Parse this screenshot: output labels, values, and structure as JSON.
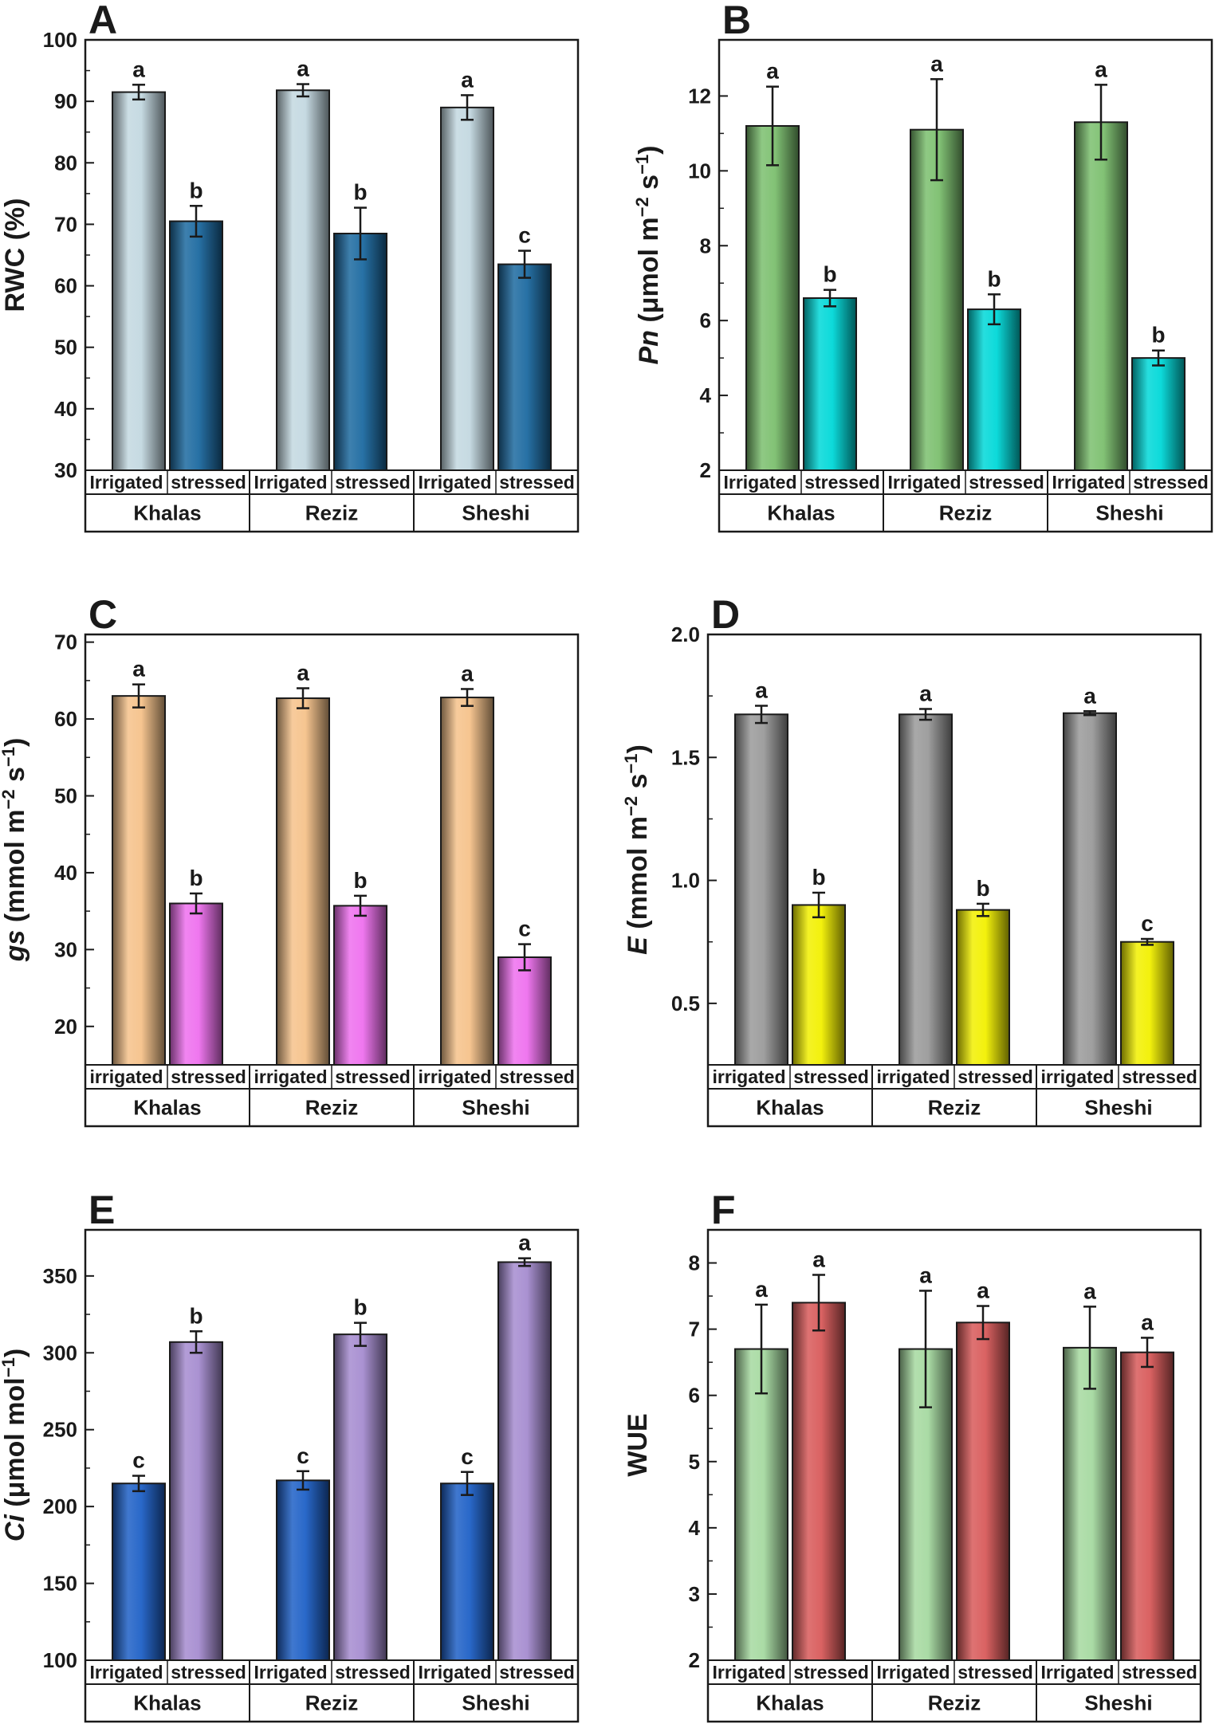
{
  "figure": {
    "panels": [
      {
        "id": "A",
        "ylabel_parts": [
          {
            "t": "RWC (%)"
          }
        ],
        "ylim": [
          30,
          100
        ],
        "ticks": [
          30,
          40,
          50,
          60,
          70,
          80,
          90,
          100
        ],
        "tick_format": "0",
        "colors": [
          "#c3d8e0",
          "#1c6aa0"
        ],
        "conditions": [
          "Irrigated",
          "stressed"
        ],
        "cultivars": [
          "Khalas",
          "Reziz",
          "Sheshi"
        ],
        "values": [
          [
            91.5,
            70.5
          ],
          [
            91.8,
            68.5
          ],
          [
            89,
            63.5
          ]
        ],
        "errors": [
          [
            1.2,
            2.5
          ],
          [
            1.0,
            4.2
          ],
          [
            2.0,
            2.2
          ]
        ],
        "letters": [
          [
            "a",
            "b"
          ],
          [
            "a",
            "b"
          ],
          [
            "a",
            "c"
          ]
        ]
      },
      {
        "id": "B",
        "ylabel_parts": [
          {
            "t": "Pn",
            "i": true
          },
          {
            "t": " (μmol m"
          },
          {
            "t": "−2",
            "sup": true
          },
          {
            "t": " s"
          },
          {
            "t": "−1",
            "sup": true
          },
          {
            "t": ")"
          }
        ],
        "ylim": [
          2,
          13.5
        ],
        "ticks": [
          2,
          4,
          6,
          8,
          10,
          12
        ],
        "tick_format": "0",
        "colors": [
          "#7bbf6e",
          "#00d8d8"
        ],
        "conditions": [
          "Irrigated",
          "stressed"
        ],
        "cultivars": [
          "Khalas",
          "Reziz",
          "Sheshi"
        ],
        "values": [
          [
            11.2,
            6.6
          ],
          [
            11.1,
            6.3
          ],
          [
            11.3,
            5.0
          ]
        ],
        "errors": [
          [
            1.05,
            0.22
          ],
          [
            1.35,
            0.4
          ],
          [
            1.0,
            0.2
          ]
        ],
        "letters": [
          [
            "a",
            "b"
          ],
          [
            "a",
            "b"
          ],
          [
            "a",
            "b"
          ]
        ]
      },
      {
        "id": "C",
        "ylabel_parts": [
          {
            "t": "gs",
            "i": true
          },
          {
            "t": " (mmol m"
          },
          {
            "t": "−2",
            "sup": true
          },
          {
            "t": " s"
          },
          {
            "t": "−1",
            "sup": true
          },
          {
            "t": ")"
          }
        ],
        "ylim": [
          15,
          71
        ],
        "ticks": [
          20,
          30,
          40,
          50,
          60,
          70
        ],
        "tick_format": "0",
        "colors": [
          "#f5c28a",
          "#ee70ee"
        ],
        "conditions": [
          "irrigated",
          "stressed"
        ],
        "cultivars": [
          "Khalas",
          "Reziz",
          "Sheshi"
        ],
        "values": [
          [
            63,
            36
          ],
          [
            62.7,
            35.7
          ],
          [
            62.8,
            29
          ]
        ],
        "errors": [
          [
            1.5,
            1.3
          ],
          [
            1.3,
            1.3
          ],
          [
            1.1,
            1.7
          ]
        ],
        "letters": [
          [
            "a",
            "b"
          ],
          [
            "a",
            "b"
          ],
          [
            "a",
            "c"
          ]
        ]
      },
      {
        "id": "D",
        "ylabel_parts": [
          {
            "t": "E",
            "i": true
          },
          {
            "t": " (mmol m"
          },
          {
            "t": "−2",
            "sup": true
          },
          {
            "t": " s"
          },
          {
            "t": "−1",
            "sup": true
          },
          {
            "t": ")"
          }
        ],
        "ylim": [
          0.25,
          2.0
        ],
        "ticks": [
          0.5,
          1.0,
          1.5,
          2.0
        ],
        "tick_format": "0.0",
        "colors": [
          "#9a9a9a",
          "#f2f000"
        ],
        "conditions": [
          "irrigated",
          "stressed"
        ],
        "cultivars": [
          "Khalas",
          "Reziz",
          "Sheshi"
        ],
        "values": [
          [
            1.675,
            0.9
          ],
          [
            1.675,
            0.88
          ],
          [
            1.68,
            0.75
          ]
        ],
        "errors": [
          [
            0.035,
            0.05
          ],
          [
            0.022,
            0.025
          ],
          [
            0.008,
            0.012
          ]
        ],
        "letters": [
          [
            "a",
            "b"
          ],
          [
            "a",
            "b"
          ],
          [
            "a",
            "c"
          ]
        ]
      },
      {
        "id": "E",
        "ylabel_parts": [
          {
            "t": "Ci",
            "i": true
          },
          {
            "t": " (μmol mol"
          },
          {
            "t": "−1",
            "sup": true
          },
          {
            "t": ")"
          }
        ],
        "ylim": [
          100,
          380
        ],
        "ticks": [
          100,
          150,
          200,
          250,
          300,
          350
        ],
        "tick_format": "0",
        "colors": [
          "#1e60c6",
          "#a58cd0"
        ],
        "conditions": [
          "Irrigated",
          "stressed"
        ],
        "cultivars": [
          "Khalas",
          "Reziz",
          "Sheshi"
        ],
        "values": [
          [
            215,
            307
          ],
          [
            217,
            312
          ],
          [
            215,
            359
          ]
        ],
        "errors": [
          [
            5,
            7
          ],
          [
            6,
            7.5
          ],
          [
            7.5,
            2.5
          ]
        ],
        "letters": [
          [
            "c",
            "b"
          ],
          [
            "c",
            "b"
          ],
          [
            "c",
            "a"
          ]
        ]
      },
      {
        "id": "F",
        "ylabel_parts": [
          {
            "t": "WUE"
          }
        ],
        "ylim": [
          2,
          8.5
        ],
        "ticks": [
          2,
          3,
          4,
          5,
          6,
          7,
          8
        ],
        "tick_format": "0",
        "colors": [
          "#a6d9a0",
          "#d85a5a"
        ],
        "conditions": [
          "Irrigated",
          "stressed"
        ],
        "cultivars": [
          "Khalas",
          "Reziz",
          "Sheshi"
        ],
        "values": [
          [
            6.7,
            7.4
          ],
          [
            6.7,
            7.1
          ],
          [
            6.72,
            6.65
          ]
        ],
        "errors": [
          [
            0.67,
            0.42
          ],
          [
            0.88,
            0.25
          ],
          [
            0.62,
            0.22
          ]
        ],
        "letters": [
          [
            "a",
            "a"
          ],
          [
            "a",
            "a"
          ],
          [
            "a",
            "a"
          ]
        ]
      }
    ]
  },
  "chart_data": [
    {
      "type": "bar",
      "panel": "A",
      "ylabel": "RWC (%)",
      "categories": [
        "Khalas",
        "Reziz",
        "Sheshi"
      ],
      "ylim": [
        30,
        100
      ],
      "series": [
        {
          "name": "Irrigated",
          "values": [
            91.5,
            91.8,
            89
          ],
          "errors": [
            1.2,
            1.0,
            2.0
          ],
          "letters": [
            "a",
            "a",
            "a"
          ]
        },
        {
          "name": "stressed",
          "values": [
            70.5,
            68.5,
            63.5
          ],
          "errors": [
            2.5,
            4.2,
            2.2
          ],
          "letters": [
            "b",
            "b",
            "c"
          ]
        }
      ]
    },
    {
      "type": "bar",
      "panel": "B",
      "ylabel": "Pn (μmol m−2 s−1)",
      "categories": [
        "Khalas",
        "Reziz",
        "Sheshi"
      ],
      "ylim": [
        2,
        13.5
      ],
      "series": [
        {
          "name": "Irrigated",
          "values": [
            11.2,
            11.1,
            11.3
          ],
          "errors": [
            1.05,
            1.35,
            1.0
          ],
          "letters": [
            "a",
            "a",
            "a"
          ]
        },
        {
          "name": "stressed",
          "values": [
            6.6,
            6.3,
            5.0
          ],
          "errors": [
            0.22,
            0.4,
            0.2
          ],
          "letters": [
            "b",
            "b",
            "b"
          ]
        }
      ]
    },
    {
      "type": "bar",
      "panel": "C",
      "ylabel": "gs (mmol m−2 s−1)",
      "categories": [
        "Khalas",
        "Reziz",
        "Sheshi"
      ],
      "ylim": [
        15,
        71
      ],
      "series": [
        {
          "name": "irrigated",
          "values": [
            63,
            62.7,
            62.8
          ],
          "errors": [
            1.5,
            1.3,
            1.1
          ],
          "letters": [
            "a",
            "a",
            "a"
          ]
        },
        {
          "name": "stressed",
          "values": [
            36,
            35.7,
            29
          ],
          "errors": [
            1.3,
            1.3,
            1.7
          ],
          "letters": [
            "b",
            "b",
            "c"
          ]
        }
      ]
    },
    {
      "type": "bar",
      "panel": "D",
      "ylabel": "E (mmol m−2 s−1)",
      "categories": [
        "Khalas",
        "Reziz",
        "Sheshi"
      ],
      "ylim": [
        0.25,
        2.0
      ],
      "series": [
        {
          "name": "irrigated",
          "values": [
            1.675,
            1.675,
            1.68
          ],
          "errors": [
            0.035,
            0.022,
            0.008
          ],
          "letters": [
            "a",
            "a",
            "a"
          ]
        },
        {
          "name": "stressed",
          "values": [
            0.9,
            0.88,
            0.75
          ],
          "errors": [
            0.05,
            0.025,
            0.012
          ],
          "letters": [
            "b",
            "b",
            "c"
          ]
        }
      ]
    },
    {
      "type": "bar",
      "panel": "E",
      "ylabel": "Ci (μmol mol−1)",
      "categories": [
        "Khalas",
        "Reziz",
        "Sheshi"
      ],
      "ylim": [
        100,
        380
      ],
      "series": [
        {
          "name": "Irrigated",
          "values": [
            215,
            217,
            215
          ],
          "errors": [
            5,
            6,
            7.5
          ],
          "letters": [
            "c",
            "c",
            "c"
          ]
        },
        {
          "name": "stressed",
          "values": [
            307,
            312,
            359
          ],
          "errors": [
            7,
            7.5,
            2.5
          ],
          "letters": [
            "b",
            "b",
            "a"
          ]
        }
      ]
    },
    {
      "type": "bar",
      "panel": "F",
      "ylabel": "WUE",
      "categories": [
        "Khalas",
        "Reziz",
        "Sheshi"
      ],
      "ylim": [
        2,
        8.5
      ],
      "series": [
        {
          "name": "Irrigated",
          "values": [
            6.7,
            6.7,
            6.72
          ],
          "errors": [
            0.67,
            0.88,
            0.62
          ],
          "letters": [
            "a",
            "a",
            "a"
          ]
        },
        {
          "name": "stressed",
          "values": [
            7.4,
            7.1,
            6.65
          ],
          "errors": [
            0.42,
            0.25,
            0.22
          ],
          "letters": [
            "a",
            "a",
            "a"
          ]
        }
      ]
    }
  ]
}
